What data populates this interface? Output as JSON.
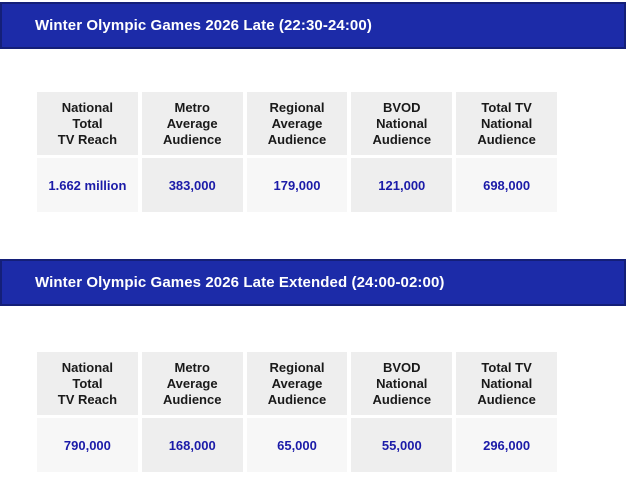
{
  "colors": {
    "bar_background": "#1c2ba8",
    "bar_border": "#141f78",
    "bar_text": "#ffffff",
    "header_cell_background": "#eeeeee",
    "value_cell_light": "#f7f7f7",
    "value_cell_shade": "#eeeeee",
    "header_text": "#1a1a1a",
    "value_text": "#1b1ba8"
  },
  "sections": [
    {
      "title": "Winter Olympic Games 2026 Late (22:30-24:00)",
      "table": {
        "columns": [
          {
            "header": "National\nTotal\nTV Reach",
            "value": "1.662 million"
          },
          {
            "header": "Metro\nAverage\nAudience",
            "value": "383,000"
          },
          {
            "header": "Regional\nAverage\nAudience",
            "value": "179,000"
          },
          {
            "header": "BVOD\nNational\nAudience",
            "value": "121,000"
          },
          {
            "header": "Total TV\nNational\nAudience",
            "value": "698,000"
          }
        ]
      }
    },
    {
      "title": "Winter Olympic Games 2026 Late Extended (24:00-02:00)",
      "table": {
        "columns": [
          {
            "header": "National\nTotal\nTV Reach",
            "value": "790,000"
          },
          {
            "header": "Metro\nAverage\nAudience",
            "value": "168,000"
          },
          {
            "header": "Regional\nAverage\nAudience",
            "value": "65,000"
          },
          {
            "header": "BVOD\nNational\nAudience",
            "value": "55,000"
          },
          {
            "header": "Total TV\nNational\nAudience",
            "value": "296,000"
          }
        ]
      }
    }
  ]
}
